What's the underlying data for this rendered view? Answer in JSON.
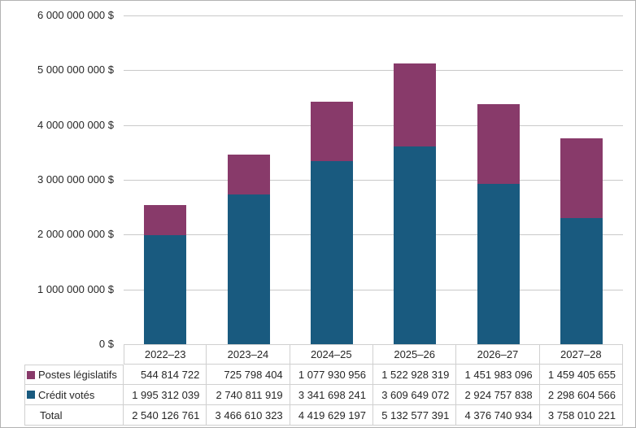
{
  "chart_data": {
    "type": "bar",
    "stacked": true,
    "title": "",
    "xlabel": "",
    "ylabel": "",
    "ylim": [
      0,
      6000000000
    ],
    "grid": "horizontal",
    "legend_position": "table-left",
    "y_tick_labels": [
      "6 000 000 000 $",
      "5 000 000 000 $",
      "4 000 000 000 $",
      "3 000 000 000 $",
      "2 000 000 000 $",
      "1 000 000 000 $",
      "0 $"
    ],
    "categories": [
      "2022–23",
      "2023–24",
      "2024–25",
      "2025–26",
      "2026–27",
      "2027–28"
    ],
    "series": [
      {
        "key": "postes-legislatifs",
        "name": "Postes législatifs",
        "color": "#883a6a",
        "values": [
          544814722,
          725798404,
          1077930956,
          1522928319,
          1451983096,
          1459405655
        ]
      },
      {
        "key": "credit-votes",
        "name": "Crédit votés",
        "color": "#195a7f",
        "values": [
          1995312039,
          2740811919,
          3341698241,
          3609649072,
          2924757838,
          2298604566
        ]
      }
    ],
    "totals": [
      2540126761,
      3466610323,
      4419629197,
      5132577391,
      4376740934,
      3758010221
    ]
  },
  "table": {
    "rows": [
      {
        "label": "Postes législatifs",
        "values": [
          "544 814 722",
          "725 798 404",
          "1 077 930 956",
          "1 522 928 319",
          "1 451 983 096",
          "1 459 405 655"
        ]
      },
      {
        "label": "Crédit votés",
        "values": [
          "1 995 312 039",
          "2 740 811 919",
          "3 341 698 241",
          "3 609 649 072",
          "2 924 757 838",
          "2 298 604 566"
        ]
      },
      {
        "label": "Total",
        "values": [
          "2 540 126 761",
          "3 466 610 323",
          "4 419 629 197",
          "5 132 577 391",
          "4 376 740 934",
          "3 758 010 221"
        ]
      }
    ]
  },
  "colors": {
    "postes_legislatifs": "#883a6a",
    "credit_votes": "#195a7f",
    "gridline": "#c9c9c9",
    "table_border": "#d0d0d0",
    "text": "#262626"
  }
}
